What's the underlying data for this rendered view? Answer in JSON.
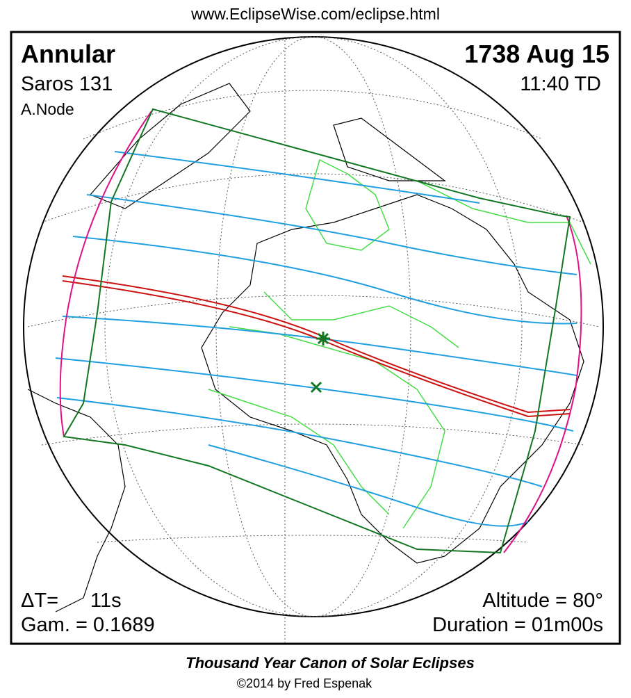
{
  "header": {
    "url": "www.EclipseWise.com/eclipse.html"
  },
  "panel": {
    "top_left": {
      "type": "Annular",
      "saros": "Saros 131",
      "node": "A.Node"
    },
    "top_right": {
      "date": "1738 Aug 15",
      "time": "11:40 TD"
    },
    "bottom_left": {
      "delta_t_label": "ΔT=",
      "delta_t_value": "11s",
      "gamma": "Gam. = 0.1689"
    },
    "bottom_right": {
      "altitude": "Altitude = 80°",
      "duration": "Duration = 01m00s"
    }
  },
  "footer": {
    "title": "Thousand Year Canon of Solar Eclipses",
    "credit": "©2014 by Fred Espenak"
  }
}
